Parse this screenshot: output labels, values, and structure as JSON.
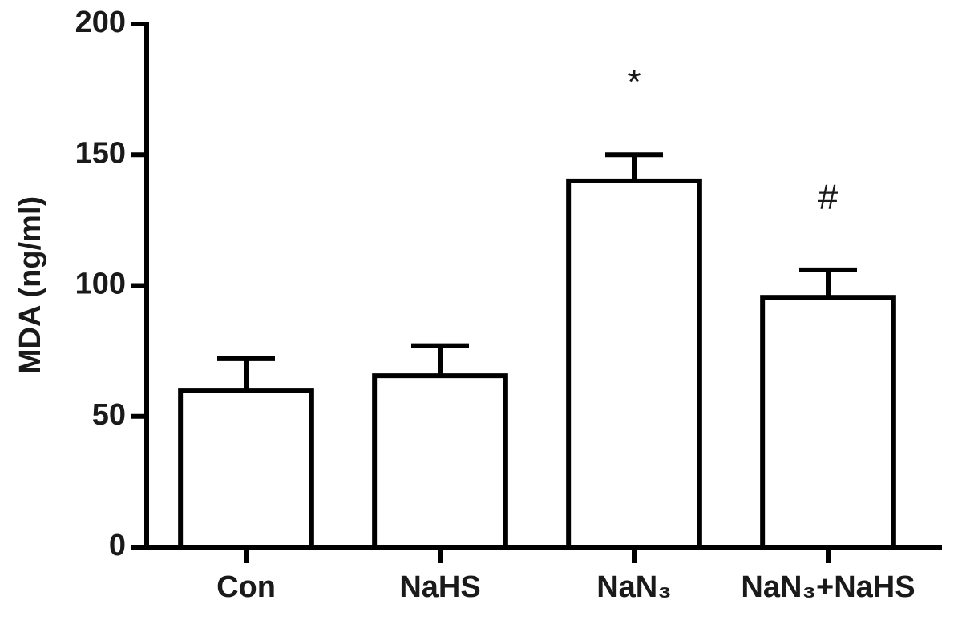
{
  "chart_data": {
    "type": "bar",
    "ylabel": "MDA (ng/ml)",
    "categories": [
      "Con",
      "NaHS",
      "NaN₃",
      "NaN₃+NaHS"
    ],
    "values": [
      60,
      65.5,
      140,
      95.5
    ],
    "errors": [
      12,
      11.5,
      10,
      10.5
    ],
    "annotations": [
      null,
      null,
      "*",
      "#"
    ],
    "color": "#ffffff",
    "edgecolor": "#000000",
    "ylim": [
      0,
      200
    ],
    "yticks": [
      0,
      50,
      100,
      150,
      200
    ],
    "grid": false
  }
}
